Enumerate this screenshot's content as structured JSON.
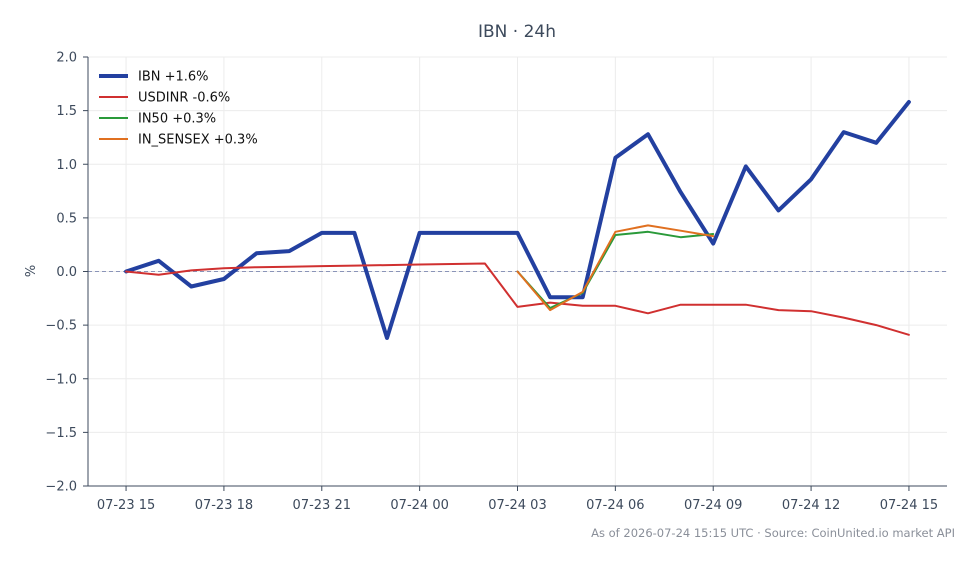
{
  "chart_data": {
    "type": "line",
    "title": "IBN · 24h",
    "ylabel": "%",
    "xlabel": "",
    "ylim": [
      -2.0,
      2.0
    ],
    "xlim": [
      "07-23 13:50",
      "07-24 16:10"
    ],
    "yticks": [
      "2.0",
      "1.5",
      "1.0",
      "0.5",
      "0.0",
      "−0.5",
      "−1.0",
      "−1.5",
      "−2.0"
    ],
    "ytick_values": [
      2.0,
      1.5,
      1.0,
      0.5,
      0.0,
      -0.5,
      -1.0,
      -1.5,
      -2.0
    ],
    "xticks": [
      "07-23 15",
      "07-23 18",
      "07-23 21",
      "07-24 00",
      "07-24 03",
      "07-24 06",
      "07-24 09",
      "07-24 12",
      "07-24 15"
    ],
    "xtick_values": [
      "07-23 15:00",
      "07-23 18:00",
      "07-23 21:00",
      "07-24 00:00",
      "07-24 03:00",
      "07-24 06:00",
      "07-24 09:00",
      "07-24 12:00",
      "07-24 15:00"
    ],
    "grid": true,
    "zero_line": true,
    "legend_position": "top-left",
    "series": [
      {
        "name": "IBN +1.6%",
        "color": "#2340a0",
        "width": 4,
        "x": [
          "07-23 15:00",
          "07-23 16:00",
          "07-23 17:00",
          "07-23 18:00",
          "07-23 19:00",
          "07-23 20:00",
          "07-23 21:00",
          "07-23 22:00",
          "07-23 23:00",
          "07-24 00:00",
          "07-24 01:00",
          "07-24 02:00",
          "07-24 03:00",
          "07-24 04:00",
          "07-24 05:00",
          "07-24 06:00",
          "07-24 07:00",
          "07-24 08:00",
          "07-24 09:00",
          "07-24 10:00",
          "07-24 11:00",
          "07-24 12:00",
          "07-24 13:00",
          "07-24 14:00",
          "07-24 15:00"
        ],
        "y": [
          0.0,
          0.1,
          -0.14,
          -0.07,
          0.17,
          0.19,
          0.36,
          0.36,
          -0.62,
          0.36,
          0.36,
          0.36,
          0.36,
          -0.24,
          -0.24,
          1.06,
          1.28,
          0.74,
          0.26,
          0.98,
          0.57,
          0.86,
          1.3,
          1.2,
          1.58
        ]
      },
      {
        "name": "USDINR -0.6%",
        "color": "#d03030",
        "width": 2,
        "x": [
          "07-23 15:00",
          "07-23 16:00",
          "07-23 17:00",
          "07-23 18:00",
          "07-23 19:00",
          "07-23 20:00",
          "07-23 21:00",
          "07-23 22:00",
          "07-23 23:00",
          "07-24 00:00",
          "07-24 01:00",
          "07-24 02:00",
          "07-24 03:00",
          "07-24 04:00",
          "07-24 05:00",
          "07-24 06:00",
          "07-24 07:00",
          "07-24 08:00",
          "07-24 09:00",
          "07-24 10:00",
          "07-24 11:00",
          "07-24 12:00",
          "07-24 13:00",
          "07-24 14:00",
          "07-24 15:00"
        ],
        "y": [
          0.0,
          -0.03,
          0.01,
          0.03,
          0.04,
          0.045,
          0.05,
          0.055,
          0.06,
          0.065,
          0.07,
          0.075,
          -0.33,
          -0.29,
          -0.32,
          -0.32,
          -0.39,
          -0.31,
          -0.31,
          -0.31,
          -0.36,
          -0.37,
          -0.43,
          -0.5,
          -0.59
        ]
      },
      {
        "name": "IN50 +0.3%",
        "color": "#2a9a3a",
        "width": 2,
        "x": [
          "07-24 03:00",
          "07-24 04:00",
          "07-24 05:00",
          "07-24 06:00",
          "07-24 07:00",
          "07-24 08:00",
          "07-24 09:00"
        ],
        "y": [
          0.0,
          -0.34,
          -0.2,
          0.34,
          0.37,
          0.32,
          0.35
        ]
      },
      {
        "name": "IN_SENSEX +0.3%",
        "color": "#e07020",
        "width": 2,
        "x": [
          "07-24 03:00",
          "07-24 04:00",
          "07-24 05:00",
          "07-24 06:00",
          "07-24 07:00",
          "07-24 08:00",
          "07-24 09:00"
        ],
        "y": [
          0.0,
          -0.36,
          -0.19,
          0.37,
          0.43,
          0.38,
          0.33
        ]
      }
    ],
    "footer": "As of 2026-07-24 15:15 UTC · Source: CoinUnited.io market API"
  }
}
